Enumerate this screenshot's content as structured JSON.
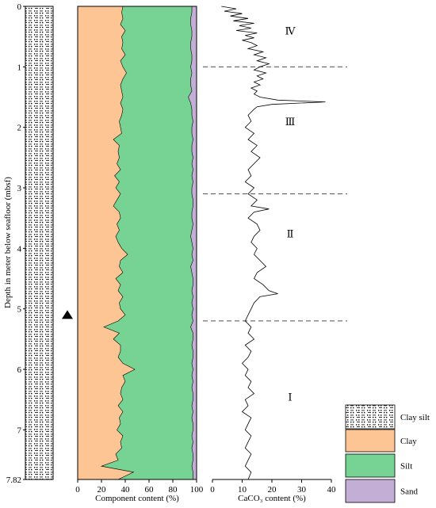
{
  "chart_data": {
    "type": "area",
    "ylabel": "Depth in meter below seafloor (mbsf)",
    "depth_range": [
      0,
      7.82
    ],
    "depth_ticks": [
      "0",
      "1",
      "2",
      "3",
      "4",
      "5",
      "6",
      "7",
      "7.82"
    ],
    "sample_marker_depth": 5.1,
    "components": {
      "xlabel": "Component content (%)",
      "xlim": [
        0,
        100
      ],
      "xticks": [
        "0",
        "20",
        "40",
        "60",
        "80",
        "100"
      ],
      "depth": [
        0,
        0.1,
        0.2,
        0.3,
        0.4,
        0.5,
        0.6,
        0.7,
        0.8,
        0.9,
        1.0,
        1.1,
        1.2,
        1.3,
        1.4,
        1.5,
        1.6,
        1.7,
        1.8,
        1.9,
        2.0,
        2.1,
        2.2,
        2.3,
        2.4,
        2.5,
        2.6,
        2.7,
        2.8,
        2.9,
        3.0,
        3.1,
        3.2,
        3.3,
        3.4,
        3.5,
        3.6,
        3.7,
        3.8,
        3.9,
        4.0,
        4.1,
        4.2,
        4.3,
        4.4,
        4.5,
        4.6,
        4.7,
        4.8,
        4.9,
        5.0,
        5.1,
        5.2,
        5.3,
        5.4,
        5.5,
        5.6,
        5.7,
        5.8,
        5.9,
        6.0,
        6.1,
        6.2,
        6.3,
        6.4,
        6.5,
        6.6,
        6.7,
        6.8,
        6.9,
        7.0,
        7.1,
        7.2,
        7.3,
        7.4,
        7.5,
        7.6,
        7.7,
        7.82
      ],
      "clay": [
        38,
        37,
        38,
        36,
        40,
        37,
        38,
        37,
        40,
        36,
        38,
        41,
        38,
        36,
        37,
        38,
        36,
        38,
        37,
        35,
        36,
        37,
        30,
        35,
        34,
        35,
        33,
        36,
        31,
        35,
        32,
        36,
        33,
        30,
        35,
        36,
        33,
        35,
        32,
        34,
        37,
        42,
        36,
        35,
        38,
        32,
        36,
        34,
        38,
        35,
        36,
        40,
        34,
        22,
        35,
        30,
        36,
        36,
        34,
        38,
        48,
        38,
        40,
        37,
        36,
        38,
        34,
        38,
        35,
        36,
        33,
        38,
        36,
        37,
        32,
        34,
        20,
        47,
        34
      ],
      "silt_top": [
        96,
        96,
        95,
        95,
        96,
        96,
        95,
        95,
        96,
        96,
        95,
        96,
        95,
        95,
        96,
        93,
        95,
        96,
        96,
        97,
        96,
        96,
        97,
        96,
        96,
        97,
        96,
        97,
        96,
        97,
        96,
        96,
        97,
        97,
        96,
        96,
        97,
        96,
        95,
        96,
        97,
        96,
        97,
        95,
        96,
        97,
        97,
        96,
        97,
        96,
        97,
        96,
        97,
        95,
        97,
        97,
        96,
        97,
        97,
        96,
        97,
        96,
        97,
        96,
        97,
        97,
        96,
        97,
        96,
        97,
        97,
        96,
        97,
        96,
        97,
        97,
        96,
        97,
        97
      ]
    },
    "caco3": {
      "xlabel": "CaCO₃ content (%)",
      "xlim": [
        0,
        40
      ],
      "xticks": [
        "0",
        "10",
        "20",
        "30",
        "40"
      ],
      "depth": [
        0.0,
        0.04,
        0.08,
        0.12,
        0.16,
        0.2,
        0.24,
        0.28,
        0.32,
        0.36,
        0.4,
        0.44,
        0.48,
        0.52,
        0.56,
        0.6,
        0.65,
        0.7,
        0.75,
        0.8,
        0.85,
        0.9,
        0.95,
        1.0,
        1.05,
        1.1,
        1.15,
        1.2,
        1.25,
        1.3,
        1.35,
        1.4,
        1.45,
        1.5,
        1.55,
        1.58,
        1.62,
        1.66,
        1.7,
        1.8,
        1.9,
        2.0,
        2.1,
        2.2,
        2.3,
        2.4,
        2.5,
        2.6,
        2.7,
        2.8,
        2.9,
        3.0,
        3.1,
        3.2,
        3.3,
        3.35,
        3.4,
        3.5,
        3.6,
        3.7,
        3.8,
        3.9,
        4.0,
        4.1,
        4.2,
        4.3,
        4.4,
        4.5,
        4.6,
        4.7,
        4.75,
        4.8,
        4.9,
        5.0,
        5.1,
        5.2,
        5.3,
        5.4,
        5.5,
        5.6,
        5.7,
        5.8,
        5.9,
        6.0,
        6.1,
        6.2,
        6.3,
        6.4,
        6.5,
        6.6,
        6.7,
        6.8,
        6.9,
        7.0,
        7.1,
        7.2,
        7.3,
        7.4,
        7.5,
        7.6,
        7.7,
        7.82
      ],
      "values": [
        3,
        8,
        4,
        10,
        6,
        12,
        7,
        14,
        9,
        13,
        8,
        15,
        11,
        14,
        10,
        13,
        15,
        12,
        17,
        14,
        18,
        15,
        19,
        16,
        14,
        18,
        15,
        17,
        14,
        16,
        13,
        15,
        14,
        16,
        22,
        38,
        20,
        15,
        14,
        12,
        13,
        11,
        14,
        12,
        15,
        13,
        16,
        14,
        12,
        13,
        11,
        14,
        12,
        15,
        13,
        19,
        14,
        12,
        15,
        16,
        14,
        13,
        15,
        14,
        16,
        18,
        15,
        14,
        17,
        19,
        22,
        16,
        14,
        13,
        12,
        11,
        13,
        12,
        14,
        11,
        13,
        12,
        10,
        12,
        11,
        13,
        12,
        14,
        11,
        12,
        10,
        13,
        12,
        11,
        13,
        12,
        11,
        13,
        12,
        11,
        13,
        12
      ],
      "unit_boundaries": [
        1.0,
        3.1,
        5.2
      ],
      "units": [
        {
          "label": "Ⅳ",
          "depth": 0.4
        },
        {
          "label": "Ⅲ",
          "depth": 1.9
        },
        {
          "label": "Ⅱ",
          "depth": 3.75
        },
        {
          "label": "Ⅰ",
          "depth": 6.45
        }
      ]
    },
    "legend": {
      "items": [
        {
          "label": "Clay silt",
          "pattern": "clay-silt"
        },
        {
          "label": "Clay",
          "color": "#FDC593"
        },
        {
          "label": "Silt",
          "color": "#77D393"
        },
        {
          "label": "Sand",
          "color": "#C3AED6"
        }
      ]
    },
    "colors": {
      "clay": "#FDC593",
      "silt": "#77D393",
      "sand": "#C3AED6",
      "line": "#000000"
    }
  }
}
